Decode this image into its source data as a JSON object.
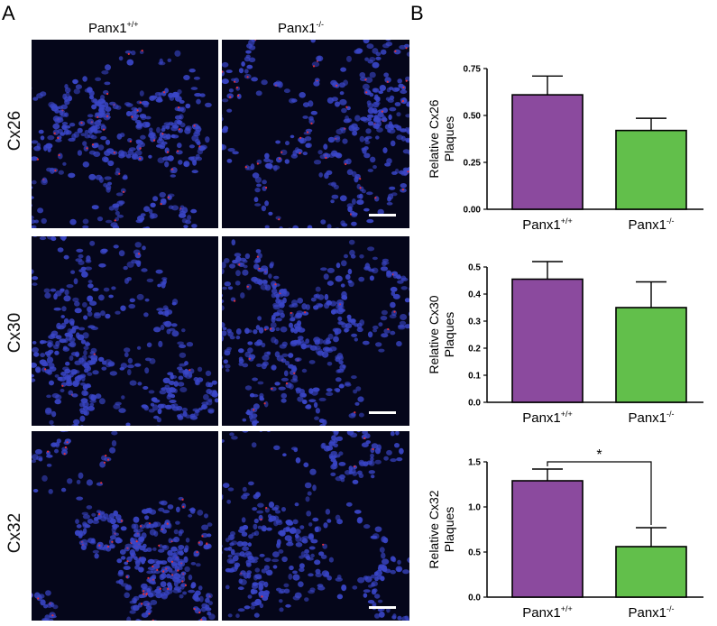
{
  "panel_a": {
    "letter": "A",
    "column_headers": [
      {
        "base": "Panx1",
        "sup": "+/+"
      },
      {
        "base": "Panx1",
        "sup": "-/-"
      }
    ],
    "row_labels": [
      "Cx26",
      "Cx30",
      "Cx32"
    ]
  },
  "panel_b": {
    "letter": "B"
  },
  "colors": {
    "wt_bar": "#8b4a9e",
    "ko_bar": "#62bf4b",
    "nuclei": "#3a46c8",
    "plaques": "#e0303a",
    "background": "#05061a"
  },
  "chart_data": [
    {
      "type": "bar",
      "categories": [
        {
          "base": "Panx1",
          "sup": "+/+"
        },
        {
          "base": "Panx1",
          "sup": "-/-"
        }
      ],
      "values": [
        0.61,
        0.42
      ],
      "errors": [
        0.1,
        0.065
      ],
      "ylabel_lines": [
        "Relative Cx26",
        "Plaques"
      ],
      "ylim": [
        0,
        0.75
      ],
      "yticks": [
        "0.00",
        "0.25",
        "0.50",
        "0.75"
      ],
      "significance": ""
    },
    {
      "type": "bar",
      "categories": [
        {
          "base": "Panx1",
          "sup": "+/+"
        },
        {
          "base": "Panx1",
          "sup": "-/-"
        }
      ],
      "values": [
        0.455,
        0.35
      ],
      "errors": [
        0.065,
        0.095
      ],
      "ylabel_lines": [
        "Relative Cx30",
        "Plaques"
      ],
      "ylim": [
        0,
        0.5
      ],
      "yticks": [
        "0.0",
        "0.1",
        "0.2",
        "0.3",
        "0.4",
        "0.5"
      ],
      "significance": ""
    },
    {
      "type": "bar",
      "categories": [
        {
          "base": "Panx1",
          "sup": "+/+"
        },
        {
          "base": "Panx1",
          "sup": "-/-"
        }
      ],
      "values": [
        1.29,
        0.56
      ],
      "errors": [
        0.13,
        0.21
      ],
      "ylabel_lines": [
        "Relative Cx32",
        "Plaques"
      ],
      "ylim": [
        0,
        1.5
      ],
      "yticks": [
        "0.0",
        "0.5",
        "1.0",
        "1.5"
      ],
      "significance": "*"
    }
  ]
}
